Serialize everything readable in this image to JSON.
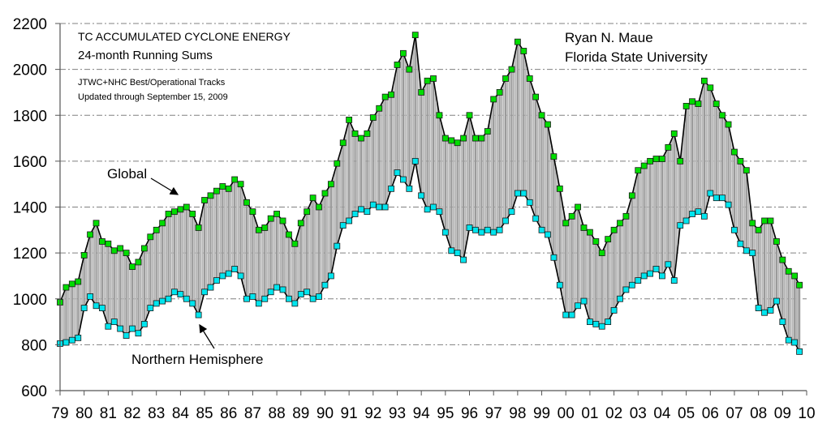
{
  "chart_data": {
    "type": "line",
    "style": "high-low with vertical connector bars",
    "title": "TC ACCUMULATED CYCLONE ENERGY",
    "subtitle": "24-month Running Sums",
    "source_lines": [
      "JTWC+NHC Best/Operational Tracks",
      "Updated through September 15, 2009"
    ],
    "author_lines": [
      "Ryan N. Maue",
      "Florida State University"
    ],
    "xlabel": "",
    "ylabel": "",
    "ylim": [
      600,
      2200
    ],
    "yticks": [
      600,
      800,
      1000,
      1200,
      1400,
      1600,
      1800,
      2000,
      2200
    ],
    "xlim": [
      1979,
      2010
    ],
    "xtick_labels": [
      "79",
      "80",
      "81",
      "82",
      "83",
      "84",
      "85",
      "86",
      "87",
      "88",
      "89",
      "90",
      "91",
      "92",
      "93",
      "94",
      "95",
      "96",
      "97",
      "98",
      "99",
      "00",
      "01",
      "02",
      "03",
      "04",
      "05",
      "06",
      "07",
      "08",
      "09",
      "10"
    ],
    "grid": "horizontal dash-dot",
    "annotations": [
      {
        "text": "Global",
        "points_to": "Global series near 1984"
      },
      {
        "text": "Northern Hemisphere",
        "points_to": "Northern Hemisphere series near 1984.75"
      }
    ],
    "x": [
      1979.0,
      1979.25,
      1979.5,
      1979.75,
      1980.0,
      1980.25,
      1980.5,
      1980.75,
      1981.0,
      1981.25,
      1981.5,
      1981.75,
      1982.0,
      1982.25,
      1982.5,
      1982.75,
      1983.0,
      1983.25,
      1983.5,
      1983.75,
      1984.0,
      1984.25,
      1984.5,
      1984.75,
      1985.0,
      1985.25,
      1985.5,
      1985.75,
      1986.0,
      1986.25,
      1986.5,
      1986.75,
      1987.0,
      1987.25,
      1987.5,
      1987.75,
      1988.0,
      1988.25,
      1988.5,
      1988.75,
      1989.0,
      1989.25,
      1989.5,
      1989.75,
      1990.0,
      1990.25,
      1990.5,
      1990.75,
      1991.0,
      1991.25,
      1991.5,
      1991.75,
      1992.0,
      1992.25,
      1992.5,
      1992.75,
      1993.0,
      1993.25,
      1993.5,
      1993.75,
      1994.0,
      1994.25,
      1994.5,
      1994.75,
      1995.0,
      1995.25,
      1995.5,
      1995.75,
      1996.0,
      1996.25,
      1996.5,
      1996.75,
      1997.0,
      1997.25,
      1997.5,
      1997.75,
      1998.0,
      1998.25,
      1998.5,
      1998.75,
      1999.0,
      1999.25,
      1999.5,
      1999.75,
      2000.0,
      2000.25,
      2000.5,
      2000.75,
      2001.0,
      2001.25,
      2001.5,
      2001.75,
      2002.0,
      2002.25,
      2002.5,
      2002.75,
      2003.0,
      2003.25,
      2003.5,
      2003.75,
      2004.0,
      2004.25,
      2004.5,
      2004.75,
      2005.0,
      2005.25,
      2005.5,
      2005.75,
      2006.0,
      2006.25,
      2006.5,
      2006.75,
      2007.0,
      2007.25,
      2007.5,
      2007.75,
      2008.0,
      2008.25,
      2008.5,
      2008.75,
      2009.0,
      2009.25,
      2009.5,
      2009.7
    ],
    "series": [
      {
        "name": "Global",
        "color": "#00dd00",
        "values": [
          985,
          1050,
          1065,
          1075,
          1190,
          1280,
          1330,
          1250,
          1240,
          1210,
          1220,
          1200,
          1140,
          1160,
          1220,
          1270,
          1300,
          1330,
          1370,
          1380,
          1390,
          1400,
          1370,
          1310,
          1430,
          1450,
          1470,
          1490,
          1480,
          1520,
          1500,
          1420,
          1380,
          1300,
          1310,
          1350,
          1370,
          1340,
          1280,
          1240,
          1330,
          1380,
          1440,
          1400,
          1460,
          1500,
          1590,
          1680,
          1780,
          1720,
          1700,
          1720,
          1790,
          1830,
          1880,
          1890,
          2020,
          2070,
          2000,
          2150,
          1900,
          1950,
          1960,
          1800,
          1700,
          1690,
          1680,
          1700,
          1800,
          1700,
          1700,
          1730,
          1870,
          1900,
          1960,
          2000,
          2120,
          2080,
          1960,
          1880,
          1800,
          1760,
          1620,
          1480,
          1330,
          1360,
          1400,
          1310,
          1290,
          1250,
          1200,
          1260,
          1300,
          1330,
          1360,
          1450,
          1560,
          1580,
          1600,
          1610,
          1610,
          1660,
          1720,
          1600,
          1840,
          1860,
          1850,
          1950,
          1920,
          1850,
          1800,
          1760,
          1640,
          1600,
          1560,
          1330,
          1300,
          1340,
          1340,
          1250,
          1170,
          1120,
          1100,
          1060
        ]
      },
      {
        "name": "Northern Hemisphere",
        "color": "#00e5ee",
        "values": [
          805,
          810,
          820,
          830,
          960,
          1010,
          970,
          960,
          880,
          900,
          870,
          840,
          870,
          850,
          890,
          960,
          980,
          990,
          1000,
          1030,
          1020,
          1000,
          980,
          930,
          1030,
          1050,
          1080,
          1100,
          1110,
          1130,
          1100,
          1000,
          1010,
          980,
          1000,
          1030,
          1050,
          1040,
          1000,
          980,
          1020,
          1030,
          1000,
          1010,
          1060,
          1100,
          1230,
          1320,
          1340,
          1370,
          1390,
          1380,
          1410,
          1400,
          1400,
          1480,
          1550,
          1520,
          1480,
          1600,
          1450,
          1390,
          1400,
          1380,
          1290,
          1210,
          1200,
          1170,
          1310,
          1300,
          1290,
          1300,
          1290,
          1300,
          1340,
          1380,
          1460,
          1460,
          1420,
          1350,
          1300,
          1280,
          1180,
          1060,
          930,
          930,
          970,
          990,
          900,
          890,
          880,
          900,
          950,
          1000,
          1040,
          1060,
          1080,
          1100,
          1110,
          1130,
          1100,
          1150,
          1080,
          1320,
          1340,
          1370,
          1380,
          1360,
          1460,
          1440,
          1440,
          1410,
          1300,
          1240,
          1210,
          1200,
          960,
          940,
          950,
          990,
          900,
          820,
          810,
          770
        ]
      }
    ]
  }
}
